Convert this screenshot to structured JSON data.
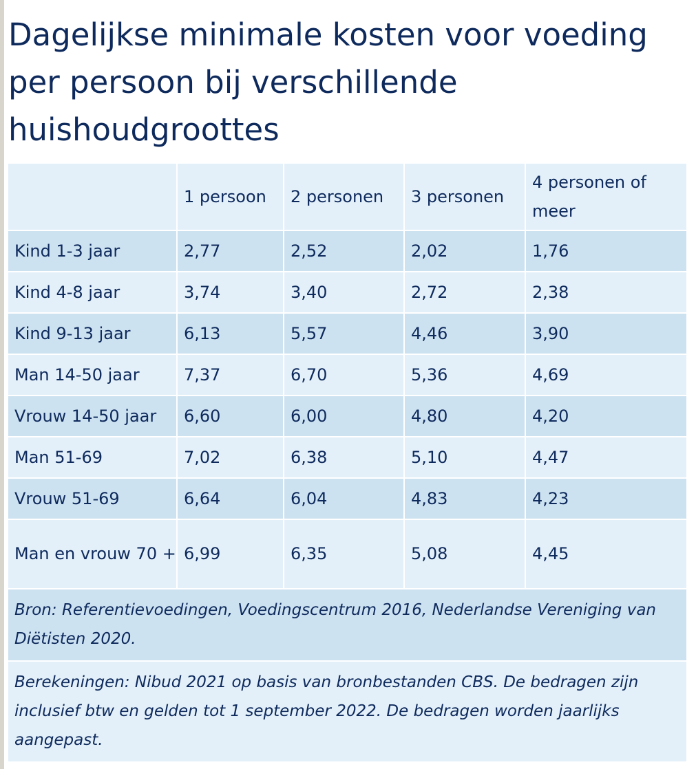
{
  "title": "Dagelijkse minimale kosten voor voeding per persoon bij verschillende huishoudgroottes",
  "table": {
    "columns": [
      "",
      "1 persoon",
      "2 personen",
      "3 personen",
      "4 personen of meer"
    ],
    "rows": [
      {
        "label": "Kind 1-3 jaar",
        "values": [
          "2,77",
          "2,52",
          "2,02",
          "1,76"
        ]
      },
      {
        "label": "Kind 4-8 jaar",
        "values": [
          "3,74",
          "3,40",
          "2,72",
          "2,38"
        ]
      },
      {
        "label": "Kind 9-13 jaar",
        "values": [
          "6,13",
          "5,57",
          "4,46",
          "3,90"
        ]
      },
      {
        "label": "Man 14-50 jaar",
        "values": [
          "7,37",
          "6,70",
          "5,36",
          "4,69"
        ]
      },
      {
        "label": "Vrouw 14-50 jaar",
        "values": [
          "6,60",
          "6,00",
          "4,80",
          "4,20"
        ]
      },
      {
        "label": "Man 51-69",
        "values": [
          "7,02",
          "6,38",
          "5,10",
          "4,47"
        ]
      },
      {
        "label": "Vrouw 51-69",
        "values": [
          "6,64",
          "6,04",
          "4,83",
          "4,23"
        ]
      },
      {
        "label": "Man en vrouw 70 +",
        "values": [
          "6,99",
          "6,35",
          "5,08",
          "4,45"
        ]
      }
    ]
  },
  "notes": {
    "source": "Bron: Referentievoedingen, Voedingscentrum 2016, Nederlandse Vereniging van Diëtisten 2020.",
    "calculation": "Berekeningen: Nibud 2021 op basis van bronbestanden CBS. De bedragen zijn inclusief btw en gelden tot 1 september 2022. De bedragen worden jaarlijks aangepast."
  },
  "colors": {
    "title_text": "#0e2a5c",
    "row_dark": "#cde2f1",
    "row_light": "#e3f0f9"
  }
}
